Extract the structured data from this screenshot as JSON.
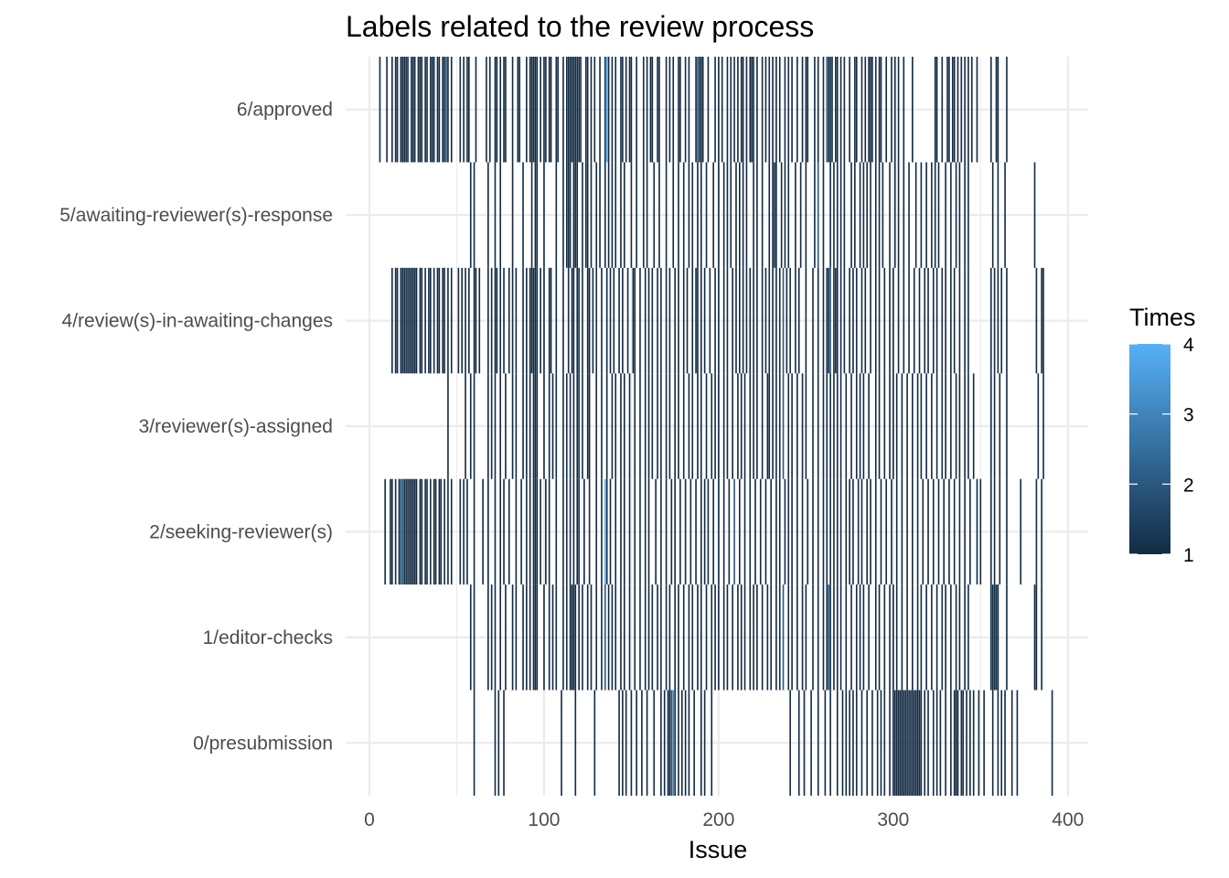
{
  "chart_data": {
    "type": "heatmap",
    "title": "Labels related to the review process",
    "xlabel": "Issue",
    "ylabel": "",
    "xlim": [
      -7,
      410
    ],
    "x_ticks": [
      0,
      100,
      200,
      300,
      400
    ],
    "categories": [
      "0/presubmission",
      "1/editor-checks",
      "2/seeking-reviewer(s)",
      "3/reviewer(s)-assigned",
      "4/review(s)-in-awaiting-changes",
      "5/awaiting-reviewer(s)-response",
      "6/approved"
    ],
    "legend": {
      "title": "Times",
      "ticks": [
        1,
        2,
        3,
        4
      ],
      "range": [
        1,
        4
      ],
      "color_low": "#132B43",
      "color_high": "#56B1F7",
      "position": "right"
    },
    "grid": true,
    "series": [
      {
        "category": "6/approved",
        "issues": [
          6,
          10,
          13,
          15,
          16,
          18,
          19,
          20,
          21,
          22,
          24,
          25,
          26,
          28,
          29,
          30,
          32,
          33,
          35,
          36,
          37,
          39,
          40,
          42,
          43,
          44,
          45,
          47,
          52,
          54,
          56,
          57,
          61,
          67,
          69,
          72,
          73,
          75,
          77,
          78,
          82,
          85,
          86,
          90,
          92,
          93,
          94,
          95,
          96,
          98,
          100,
          101,
          103,
          104,
          107,
          108,
          111,
          113,
          114,
          115,
          116,
          117,
          118,
          119,
          120,
          121,
          124,
          125,
          127,
          129,
          132,
          135,
          136,
          137,
          139,
          141,
          144,
          145,
          147,
          149,
          150,
          153,
          157,
          159,
          161,
          162,
          165,
          166,
          170,
          172,
          174,
          177,
          178,
          181,
          183,
          187,
          188,
          189,
          190,
          191,
          194,
          198,
          200,
          202,
          205,
          207,
          209,
          211,
          213,
          214,
          216,
          218,
          219,
          220,
          222,
          225,
          227,
          229,
          231,
          233,
          235,
          238,
          240,
          242,
          245,
          248,
          250,
          251,
          255,
          257,
          260,
          262,
          263,
          264,
          265,
          267,
          268,
          270,
          272,
          275,
          278,
          279,
          282,
          284,
          286,
          287,
          288,
          290,
          292,
          293,
          296,
          299,
          301,
          303,
          306,
          311,
          324,
          325,
          328,
          331,
          332,
          334,
          335,
          337,
          339,
          341,
          343,
          345,
          348,
          356,
          359,
          360,
          365
        ],
        "values": {
          "136": 4,
          "188": 2,
          "262": 2,
          "44": 2
        }
      },
      {
        "category": "5/awaiting-reviewer(s)-response",
        "issues": [
          58,
          60,
          68,
          72,
          75,
          82,
          88,
          93,
          95,
          96,
          100,
          107,
          111,
          113,
          114,
          115,
          117,
          118,
          119,
          122,
          124,
          125,
          127,
          130,
          132,
          135,
          137,
          139,
          141,
          144,
          146,
          150,
          153,
          157,
          159,
          163,
          166,
          170,
          174,
          177,
          180,
          183,
          185,
          188,
          190,
          193,
          197,
          200,
          203,
          205,
          207,
          210,
          212,
          214,
          216,
          220,
          222,
          225,
          229,
          231,
          232,
          233,
          236,
          238,
          240,
          244,
          247,
          250,
          255,
          257,
          260,
          264,
          266,
          268,
          270,
          272,
          276,
          278,
          281,
          283,
          285,
          287,
          290,
          292,
          294,
          298,
          301,
          303,
          306,
          309,
          313,
          316,
          319,
          322,
          324,
          326,
          330,
          333,
          336,
          338,
          341,
          343,
          357,
          360,
          364,
          381
        ],
        "values": {
          "237": 2,
          "257": 2
        }
      },
      {
        "category": "4/review(s)-in-awaiting-changes",
        "issues": [
          13,
          15,
          16,
          18,
          19,
          20,
          21,
          22,
          23,
          24,
          25,
          26,
          27,
          29,
          30,
          32,
          34,
          35,
          37,
          39,
          40,
          42,
          43,
          45,
          47,
          51,
          53,
          55,
          57,
          60,
          61,
          63,
          68,
          70,
          72,
          73,
          75,
          77,
          80,
          82,
          84,
          88,
          90,
          92,
          93,
          94,
          95,
          96,
          98,
          100,
          103,
          104,
          107,
          111,
          114,
          116,
          117,
          119,
          120,
          122,
          125,
          126,
          128,
          130,
          133,
          136,
          138,
          140,
          143,
          145,
          148,
          151,
          152,
          155,
          158,
          160,
          162,
          165,
          167,
          170,
          172,
          175,
          177,
          180,
          182,
          185,
          187,
          188,
          190,
          192,
          195,
          198,
          200,
          203,
          205,
          208,
          210,
          212,
          214,
          216,
          218,
          220,
          222,
          225,
          227,
          229,
          231,
          233,
          235,
          237,
          239,
          241,
          244,
          246,
          250,
          254,
          257,
          260,
          262,
          263,
          264,
          266,
          267,
          268,
          270,
          272,
          275,
          277,
          279,
          282,
          284,
          287,
          290,
          292,
          295,
          298,
          300,
          303,
          306,
          309,
          312,
          315,
          318,
          320,
          323,
          325,
          328,
          330,
          333,
          335,
          338,
          341,
          343,
          356,
          358,
          360,
          362,
          365,
          382,
          385,
          386
        ],
        "values": {
          "237": 2,
          "264": 2
        }
      },
      {
        "category": "3/reviewer(s)-assigned",
        "issues": [
          45,
          55,
          58,
          60,
          68,
          70,
          72,
          75,
          78,
          82,
          84,
          88,
          90,
          92,
          94,
          95,
          96,
          100,
          103,
          105,
          107,
          111,
          113,
          115,
          117,
          119,
          120,
          122,
          125,
          126,
          130,
          133,
          136,
          139,
          141,
          144,
          146,
          149,
          152,
          155,
          158,
          160,
          162,
          165,
          167,
          170,
          172,
          175,
          177,
          180,
          183,
          185,
          188,
          190,
          193,
          196,
          198,
          200,
          203,
          205,
          208,
          211,
          213,
          215,
          218,
          220,
          222,
          225,
          228,
          229,
          231,
          233,
          235,
          237,
          240,
          242,
          245,
          248,
          250,
          254,
          257,
          260,
          262,
          264,
          266,
          268,
          270,
          273,
          276,
          279,
          281,
          283,
          286,
          290,
          292,
          295,
          298,
          300,
          302,
          305,
          308,
          311,
          314,
          316,
          319,
          322,
          325,
          328,
          330,
          333,
          336,
          338,
          341,
          343,
          346,
          356,
          358,
          361,
          365,
          383,
          386
        ],
        "values": {
          "237": 2
        }
      },
      {
        "category": "2/seeking-reviewer(s)",
        "issues": [
          9,
          12,
          13,
          15,
          17,
          18,
          19,
          20,
          21,
          22,
          23,
          24,
          25,
          26,
          27,
          29,
          30,
          32,
          33,
          35,
          37,
          38,
          40,
          41,
          43,
          45,
          47,
          52,
          54,
          56,
          60,
          65,
          68,
          72,
          75,
          77,
          80,
          84,
          87,
          90,
          92,
          94,
          95,
          96,
          98,
          101,
          103,
          107,
          111,
          113,
          115,
          117,
          119,
          120,
          123,
          126,
          130,
          133,
          135,
          136,
          138,
          141,
          144,
          146,
          149,
          152,
          155,
          158,
          160,
          164,
          167,
          170,
          173,
          175,
          178,
          181,
          184,
          187,
          190,
          192,
          194,
          197,
          200,
          203,
          206,
          209,
          212,
          215,
          218,
          221,
          224,
          227,
          230,
          233,
          235,
          238,
          240,
          242,
          245,
          248,
          251,
          254,
          257,
          260,
          262,
          264,
          266,
          268,
          270,
          273,
          275,
          277,
          280,
          282,
          285,
          287,
          290,
          293,
          296,
          299,
          302,
          305,
          308,
          311,
          314,
          317,
          320,
          323,
          326,
          329,
          332,
          335,
          338,
          341,
          344,
          348,
          350,
          356,
          358,
          361,
          365,
          373,
          382,
          385
        ],
        "values": {
          "18": 2,
          "19": 2,
          "135": 4,
          "209": 2
        }
      },
      {
        "category": "1/editor-checks",
        "issues": [
          58,
          60,
          68,
          70,
          72,
          75,
          78,
          82,
          84,
          88,
          90,
          92,
          94,
          95,
          96,
          100,
          103,
          105,
          107,
          111,
          113,
          115,
          116,
          117,
          118,
          120,
          122,
          125,
          127,
          130,
          133,
          135,
          137,
          139,
          141,
          144,
          146,
          149,
          152,
          155,
          158,
          160,
          162,
          165,
          167,
          170,
          172,
          175,
          177,
          180,
          183,
          185,
          188,
          190,
          193,
          196,
          198,
          200,
          203,
          205,
          208,
          211,
          213,
          215,
          218,
          220,
          222,
          225,
          228,
          230,
          233,
          235,
          237,
          240,
          242,
          245,
          248,
          250,
          254,
          257,
          260,
          262,
          263,
          264,
          266,
          268,
          270,
          273,
          276,
          279,
          281,
          283,
          286,
          290,
          292,
          295,
          298,
          300,
          302,
          305,
          308,
          311,
          314,
          316,
          319,
          322,
          325,
          328,
          330,
          333,
          336,
          338,
          341,
          343,
          356,
          357,
          358,
          359,
          360,
          365,
          381,
          382,
          385
        ],
        "values": {
          "135": 2,
          "263": 2,
          "237": 2
        }
      },
      {
        "category": "0/presubmission",
        "issues": [
          60,
          72,
          74,
          77,
          110,
          118,
          129,
          143,
          145,
          147,
          150,
          153,
          156,
          159,
          163,
          167,
          169,
          171,
          172,
          173,
          174,
          175,
          177,
          179,
          181,
          183,
          186,
          190,
          192,
          196,
          241,
          246,
          249,
          253,
          257,
          261,
          264,
          268,
          271,
          273,
          275,
          277,
          279,
          282,
          285,
          288,
          291,
          293,
          295,
          298,
          300,
          301,
          302,
          303,
          304,
          305,
          306,
          307,
          308,
          309,
          310,
          311,
          312,
          313,
          314,
          315,
          316,
          318,
          320,
          323,
          325,
          327,
          330,
          333,
          335,
          336,
          337,
          339,
          340,
          342,
          344,
          346,
          349,
          352,
          357,
          360,
          362,
          364,
          368,
          371,
          391
        ],
        "values": {
          "173": 2,
          "174": 3
        }
      }
    ]
  }
}
